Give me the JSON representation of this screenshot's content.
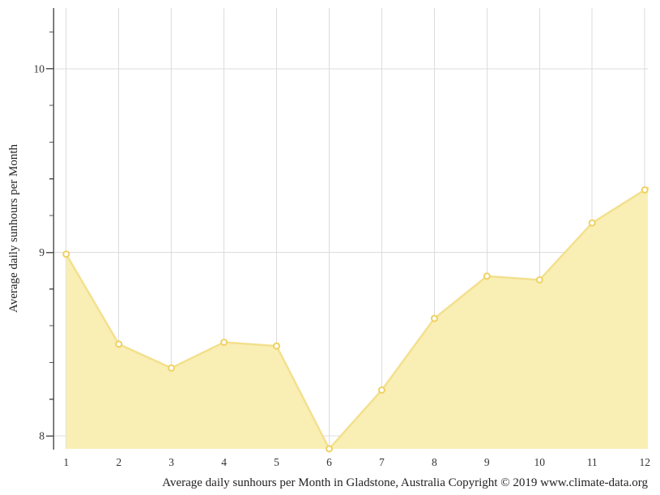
{
  "chart_data": {
    "type": "area",
    "caption": "Average daily sunhours per Month in Gladstone, Australia Copyright © 2019 www.climate-data.org",
    "ylabel": "Average daily sunhours per Month",
    "x": [
      1,
      2,
      3,
      4,
      5,
      6,
      7,
      8,
      9,
      10,
      11,
      12
    ],
    "x_tick_labels": [
      "1",
      "2",
      "3",
      "4",
      "5",
      "6",
      "7",
      "8",
      "9",
      "10",
      "11",
      "12"
    ],
    "values": [
      8.99,
      8.5,
      8.37,
      8.51,
      8.49,
      7.93,
      8.25,
      8.64,
      8.87,
      8.85,
      9.16,
      9.34
    ],
    "ylim": [
      7.93,
      10.33
    ],
    "y_ticks_major": [
      8,
      9,
      10
    ],
    "y_tick_labels": [
      "8",
      "9",
      "10"
    ],
    "y_minor_tick_step": 0.2,
    "grid": true,
    "legend_position": "none",
    "colors": {
      "area_fill": "#F9EFB5",
      "line": "#F3E08E",
      "marker_stroke": "#EFD160",
      "marker_fill": "#FFFFFF",
      "grid": "#DCDCDC",
      "axis": "#555555",
      "tick_text": "#333333"
    }
  }
}
